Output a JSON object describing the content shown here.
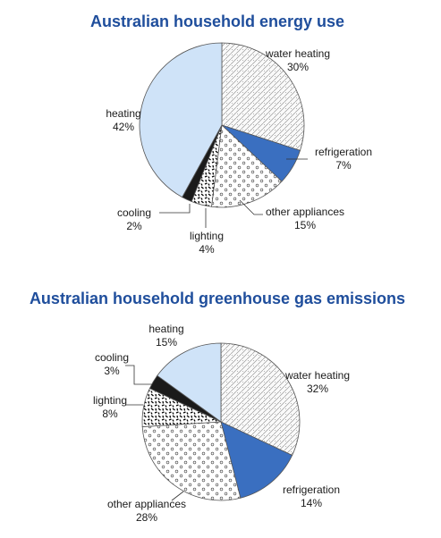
{
  "chart_data": [
    {
      "type": "pie",
      "title": "Australian household energy use",
      "categories": [
        "water heating",
        "refrigeration",
        "other appliances",
        "lighting",
        "cooling",
        "heating"
      ],
      "values": [
        30,
        7,
        15,
        4,
        2,
        42
      ],
      "value_labels": [
        "30%",
        "7%",
        "15%",
        "4%",
        "2%",
        "42%"
      ],
      "unit": "%"
    },
    {
      "type": "pie",
      "title": "Australian household greenhouse gas emissions",
      "categories": [
        "water heating",
        "refrigeration",
        "other appliances",
        "lighting",
        "cooling",
        "heating"
      ],
      "values": [
        32,
        14,
        28,
        8,
        3,
        15
      ],
      "value_labels": [
        "32%",
        "14%",
        "28%",
        "8%",
        "3%",
        "15%"
      ],
      "unit": "%"
    }
  ],
  "colors": {
    "title": "#1f4e9c",
    "water_heating": "hatched light grey",
    "refrigeration": "#3a6fc0",
    "other_appliances": "white with small circles",
    "lighting": "white with black dashes",
    "cooling": "#1a1a1a",
    "heating": "#cfe3f8"
  }
}
